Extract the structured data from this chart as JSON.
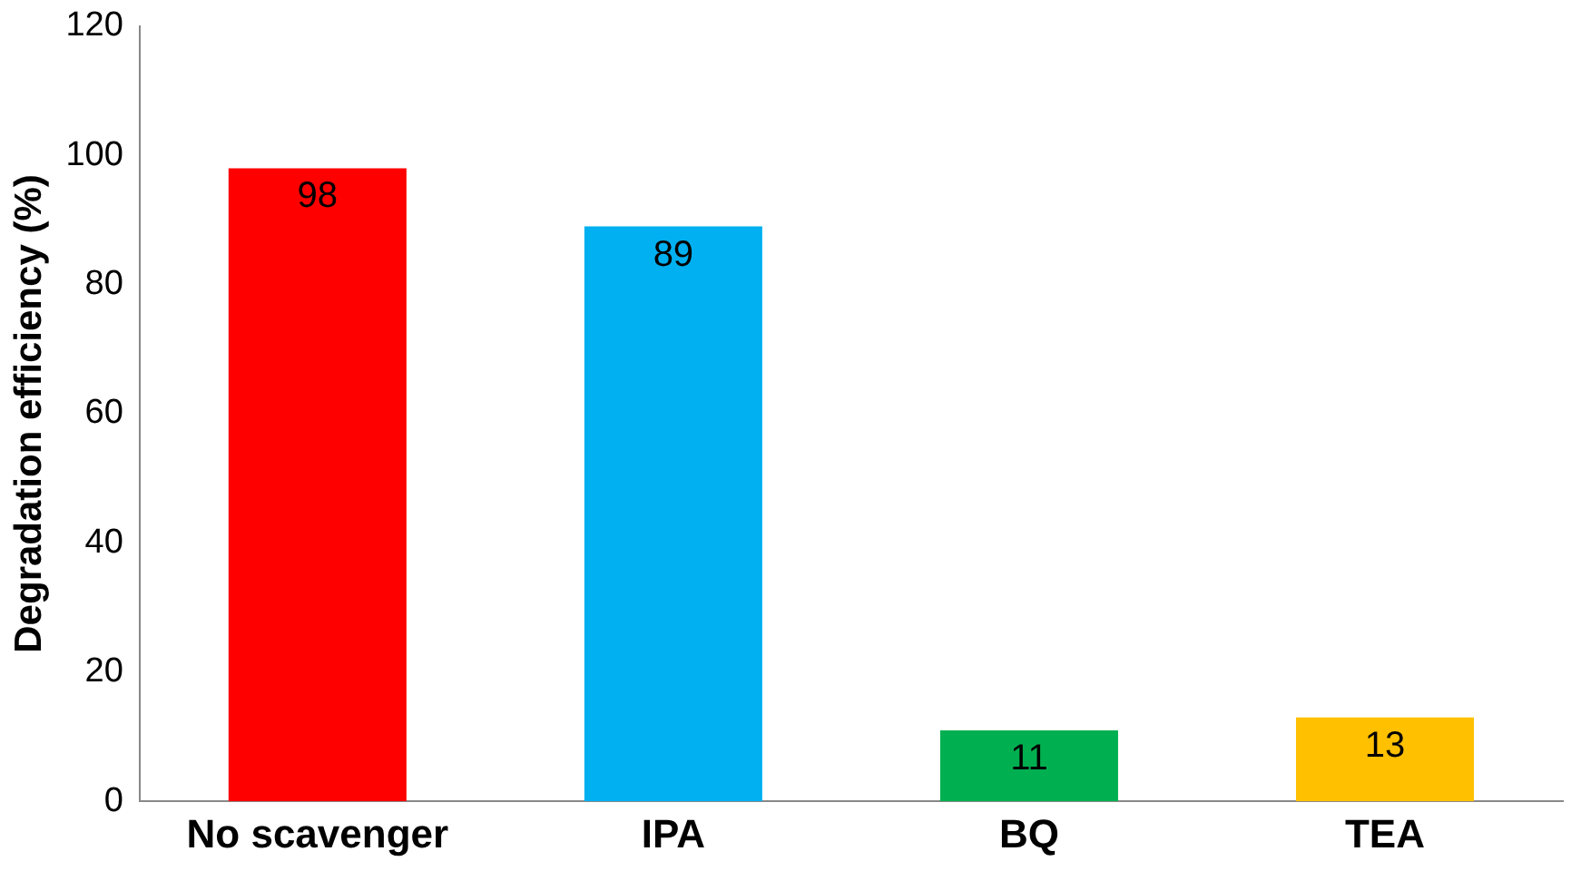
{
  "chart_data": {
    "type": "bar",
    "ylabel": "Degradation efficiency (%)",
    "categories": [
      "No scavenger",
      "IPA",
      "BQ",
      "TEA"
    ],
    "values": [
      98,
      89,
      11,
      13
    ],
    "colors": [
      "#ff0000",
      "#00b0f0",
      "#00b050",
      "#ffc000"
    ],
    "ylim": [
      0,
      120
    ],
    "yticks": [
      0,
      20,
      40,
      60,
      80,
      100,
      120
    ],
    "grid": false,
    "data_labels": true,
    "legend": false
  }
}
